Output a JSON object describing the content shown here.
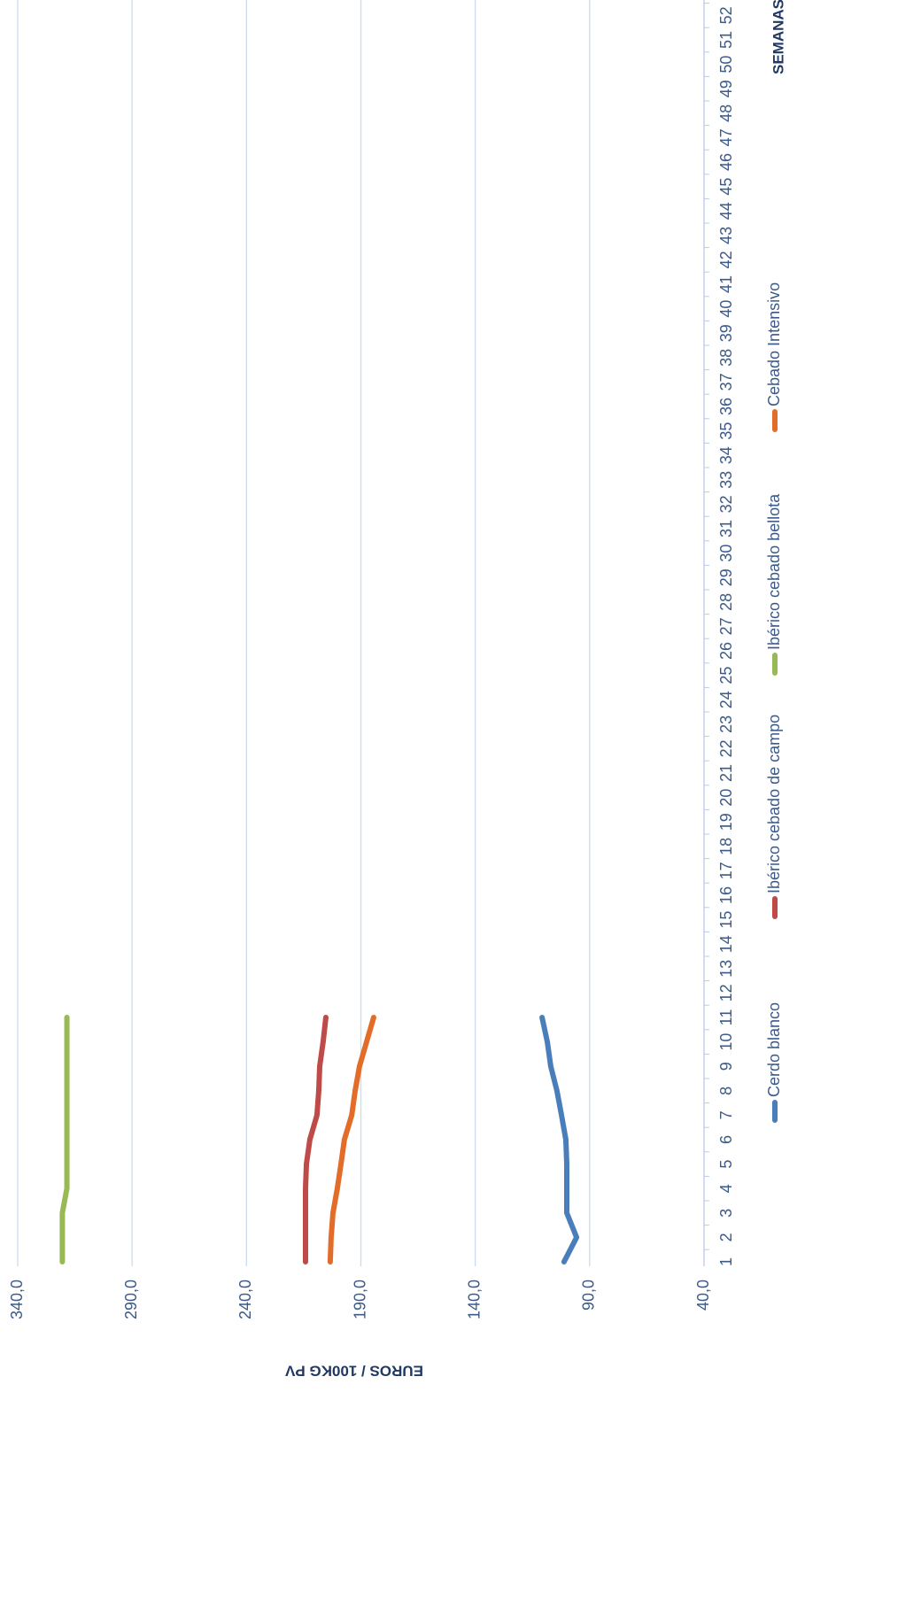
{
  "chart_data": {
    "type": "line",
    "x_label": "SEMANAS",
    "y_label": "EUROS / 100KG PV",
    "categories": [
      "1",
      "2",
      "3",
      "4",
      "5",
      "6",
      "7",
      "8",
      "9",
      "10",
      "11",
      "12",
      "13",
      "14",
      "15",
      "16",
      "17",
      "18",
      "19",
      "20",
      "21",
      "22",
      "23",
      "24",
      "25",
      "26",
      "27",
      "28",
      "29",
      "30",
      "31",
      "32",
      "33",
      "34",
      "35",
      "36",
      "37",
      "38",
      "39",
      "40",
      "41",
      "42",
      "43",
      "44",
      "45",
      "46",
      "47",
      "48",
      "49",
      "50",
      "51",
      "52"
    ],
    "series": [
      {
        "name": "Cerdo blanco",
        "color": "#4a7ebb",
        "values": [
          101.2,
          95.7,
          100,
          100,
          100,
          100.4,
          102.3,
          104.3,
          107,
          108.5,
          110.8,
          null,
          null,
          null,
          null,
          null,
          null,
          null,
          null,
          null,
          null,
          null,
          null,
          null,
          null,
          null,
          null,
          null,
          null,
          null,
          null,
          null,
          null,
          null,
          null,
          null,
          null,
          null,
          null,
          null,
          null,
          null,
          null,
          null,
          null,
          null,
          null,
          null,
          null,
          null,
          null,
          null
        ]
      },
      {
        "name": "Ibérico cebado de campo",
        "color": "#be4b48",
        "values": [
          214.2,
          214.2,
          214.2,
          214.2,
          213.8,
          212.3,
          209.2,
          208.4,
          208,
          206.5,
          205.3,
          null,
          null,
          null,
          null,
          null,
          null,
          null,
          null,
          null,
          null,
          null,
          null,
          null,
          null,
          null,
          null,
          null,
          null,
          null,
          null,
          null,
          null,
          null,
          null,
          null,
          null,
          null,
          null,
          null,
          null,
          null,
          null,
          null,
          null,
          null,
          null,
          null,
          null,
          null,
          null,
          null
        ]
      },
      {
        "name": "Ibérico cebado bellota",
        "color": "#98b954",
        "values": [
          320.5,
          320.5,
          320.5,
          318.5,
          318.5,
          318.5,
          318.5,
          318.5,
          318.5,
          318.5,
          318.5,
          null,
          null,
          null,
          null,
          null,
          null,
          null,
          null,
          null,
          null,
          null,
          null,
          null,
          null,
          null,
          null,
          null,
          null,
          null,
          null,
          null,
          null,
          null,
          null,
          null,
          null,
          null,
          null,
          null,
          null,
          null,
          null,
          null,
          null,
          null,
          null,
          null,
          null,
          null,
          null,
          null
        ]
      },
      {
        "name": "Cebado Intensivo",
        "color": "#e46c29",
        "values": [
          203.4,
          203,
          202.2,
          200.3,
          198.7,
          197.2,
          194,
          192.5,
          190.6,
          187.5,
          184.4,
          null,
          null,
          null,
          null,
          null,
          null,
          null,
          null,
          null,
          null,
          null,
          null,
          null,
          null,
          null,
          null,
          null,
          null,
          null,
          null,
          null,
          null,
          null,
          null,
          null,
          null,
          null,
          null,
          null,
          null,
          null,
          null,
          null,
          null,
          null,
          null,
          null,
          null,
          null,
          null,
          null
        ]
      }
    ],
    "ylim": [
      40,
      340
    ],
    "yticks": [
      {
        "value": 40,
        "label": "40,0"
      },
      {
        "value": 90,
        "label": "90,0"
      },
      {
        "value": 140,
        "label": "140,0"
      },
      {
        "value": 190,
        "label": "190,0"
      },
      {
        "value": 240,
        "label": "240,0"
      },
      {
        "value": 290,
        "label": "290,0"
      },
      {
        "value": 340,
        "label": "340,0"
      }
    ],
    "grid": true,
    "legend": "bottom"
  }
}
